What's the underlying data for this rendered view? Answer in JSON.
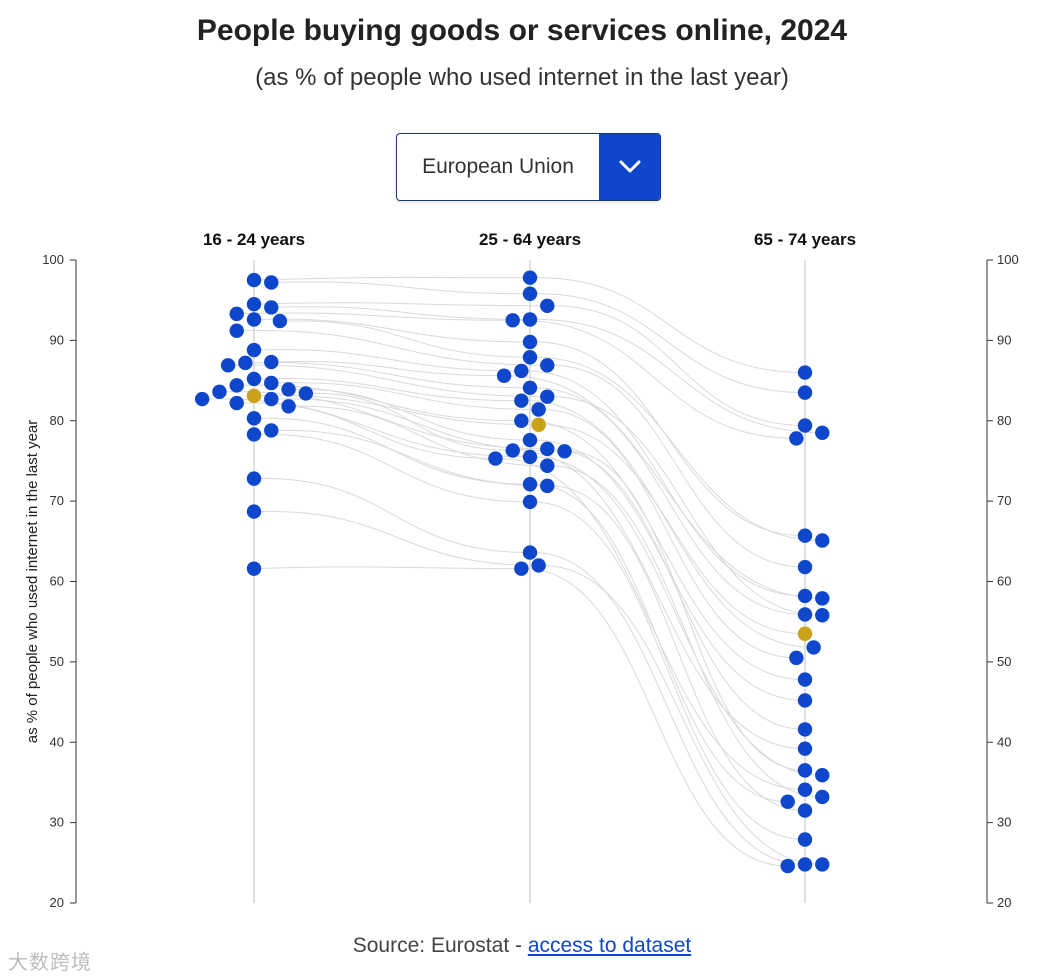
{
  "header": {
    "title": "People buying goods or services online, 2024",
    "subtitle": "(as % of people who used internet in the last year)"
  },
  "filter": {
    "selected": "European Union",
    "icon": "chevron-down-icon"
  },
  "footer": {
    "source_prefix": "Source: Eurostat - ",
    "link_text": "access to dataset"
  },
  "watermark": "大数跨境",
  "colors": {
    "country": "#0e47cb",
    "eu": "#c9a21a",
    "connector": "#d9d9d9",
    "axis": "#cccccc"
  },
  "chart_data": {
    "type": "scatter",
    "title": "People buying goods or services online, 2024",
    "ylabel": "as % of people who used internet in the last year",
    "ylim": [
      20,
      100
    ],
    "yticks": [
      20,
      30,
      40,
      50,
      60,
      70,
      80,
      90,
      100
    ],
    "categories": [
      "16 - 24 years",
      "25 - 64 years",
      "65 - 74 years"
    ],
    "highlight": {
      "name": "European Union",
      "values": [
        83.1,
        79.5,
        53.5
      ]
    },
    "series": [
      {
        "name": "c01",
        "values": [
          97.5,
          97.8,
          86.0
        ]
      },
      {
        "name": "c02",
        "values": [
          97.2,
          95.8,
          83.5
        ]
      },
      {
        "name": "c03",
        "values": [
          94.5,
          94.3,
          79.4
        ]
      },
      {
        "name": "c04",
        "values": [
          94.1,
          92.6,
          78.5
        ]
      },
      {
        "name": "c05",
        "values": [
          93.3,
          92.5,
          77.8
        ]
      },
      {
        "name": "c06",
        "values": [
          92.6,
          89.8,
          65.7
        ]
      },
      {
        "name": "c07",
        "values": [
          92.4,
          87.9,
          65.1
        ]
      },
      {
        "name": "c08",
        "values": [
          91.2,
          86.9,
          61.8
        ]
      },
      {
        "name": "c09",
        "values": [
          88.8,
          86.2,
          58.2
        ]
      },
      {
        "name": "c10",
        "values": [
          87.3,
          85.6,
          57.9
        ]
      },
      {
        "name": "c11",
        "values": [
          87.2,
          84.1,
          55.9
        ]
      },
      {
        "name": "c12",
        "values": [
          86.9,
          83.0,
          55.8
        ]
      },
      {
        "name": "c13",
        "values": [
          85.2,
          82.5,
          51.8
        ]
      },
      {
        "name": "c14",
        "values": [
          84.7,
          81.4,
          50.5
        ]
      },
      {
        "name": "c15",
        "values": [
          84.4,
          80.0,
          47.8
        ]
      },
      {
        "name": "c16",
        "values": [
          83.9,
          77.6,
          45.2
        ]
      },
      {
        "name": "c17",
        "values": [
          83.6,
          76.5,
          41.6
        ]
      },
      {
        "name": "c18",
        "values": [
          83.4,
          76.3,
          39.2
        ]
      },
      {
        "name": "c19",
        "values": [
          82.7,
          76.2,
          36.5
        ]
      },
      {
        "name": "c20",
        "values": [
          82.7,
          75.5,
          35.9
        ]
      },
      {
        "name": "c21",
        "values": [
          82.2,
          75.3,
          34.1
        ]
      },
      {
        "name": "c22",
        "values": [
          81.8,
          74.4,
          33.2
        ]
      },
      {
        "name": "c23",
        "values": [
          80.3,
          72.1,
          32.6
        ]
      },
      {
        "name": "c24",
        "values": [
          78.8,
          71.9,
          31.5
        ]
      },
      {
        "name": "c25",
        "values": [
          78.3,
          69.9,
          27.9
        ]
      },
      {
        "name": "c26",
        "values": [
          72.8,
          63.6,
          24.8
        ]
      },
      {
        "name": "c27",
        "values": [
          68.7,
          62.0,
          24.8
        ]
      },
      {
        "name": "c28",
        "values": [
          61.6,
          61.6,
          24.6
        ]
      }
    ]
  }
}
